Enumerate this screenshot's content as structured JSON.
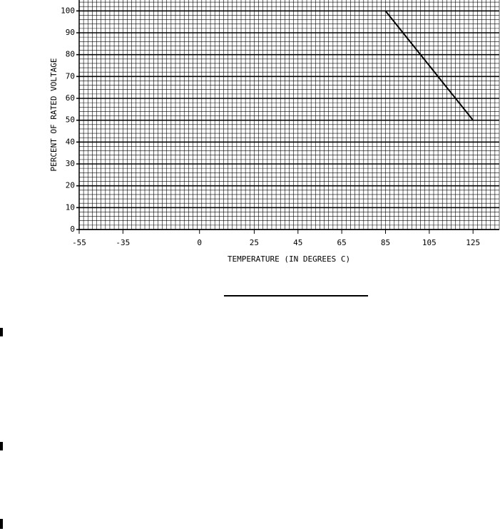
{
  "chart_data": {
    "type": "line",
    "x_label": "TEMPERATURE (IN DEGREES C)",
    "y_label": "PERCENT OF RATED VOLTAGE",
    "x": [
      85,
      125
    ],
    "series": [
      {
        "color": "#000000",
        "values": [
          100,
          50
        ]
      }
    ],
    "xlim": [
      -55,
      137
    ],
    "xticks": [
      -55,
      -35,
      0,
      25,
      45,
      65,
      85,
      105,
      125
    ],
    "ylim": [
      0,
      105
    ],
    "yticks": [
      0,
      10,
      20,
      30,
      40,
      50,
      60,
      70,
      80,
      90,
      100
    ],
    "grid": true
  }
}
